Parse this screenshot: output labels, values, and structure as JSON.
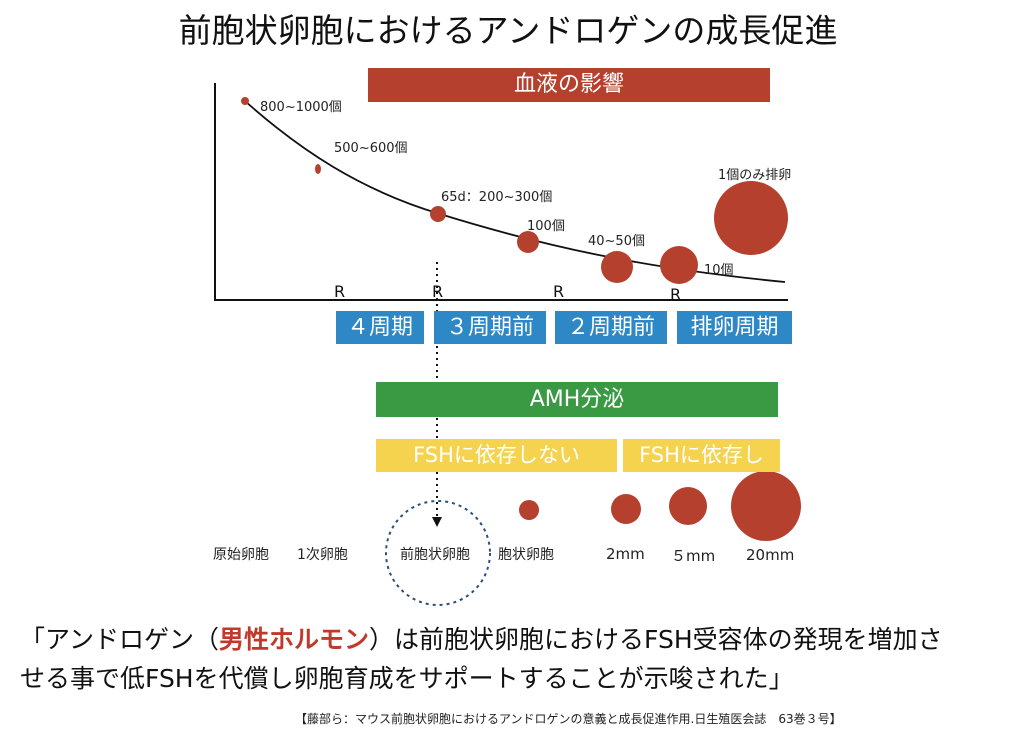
{
  "title": "前胞状卵胞におけるアンドロゲンの成長促進",
  "blood_bar": "血液の影響",
  "curve_labels": [
    "800~1000個",
    "500~600個",
    "65d：200~300個",
    "100個",
    "40~50個",
    "10個",
    "1個のみ排卵"
  ],
  "r_labels": [
    "R",
    "R",
    "R",
    "R"
  ],
  "phases": [
    "４周期",
    "３周期前",
    "２周期前",
    "排卵周期"
  ],
  "amh_bar": "AMH分泌",
  "fsh_independent": "FSHに依存しない",
  "fsh_dependent": "FSHに依存し",
  "follicle_labels": [
    "原始卵胞",
    "1次卵胞",
    "前胞状卵胞",
    "胞状卵胞",
    "2mm",
    "５mm",
    "20mm"
  ],
  "quote": {
    "line1_pre": "「アンドロゲン（",
    "line1_emph": "男性ホルモン",
    "line1_post": "）は前胞状卵胞におけるFSH受容体の発現を増加さ",
    "line2": "せる事で低FSHを代償し卵胞育成をサポートすることが示唆された」"
  },
  "citation": "【藤部ら：マウス前胞状卵胞におけるアンドロゲンの意義と成長促進作用.日生殖医会誌　63巻３号】",
  "colors": {
    "red": "#b5402e",
    "blue": "#2e88c5",
    "green": "#3a9a44",
    "yellow": "#f5d34f",
    "dotted_circle": "#2a4f7a"
  }
}
